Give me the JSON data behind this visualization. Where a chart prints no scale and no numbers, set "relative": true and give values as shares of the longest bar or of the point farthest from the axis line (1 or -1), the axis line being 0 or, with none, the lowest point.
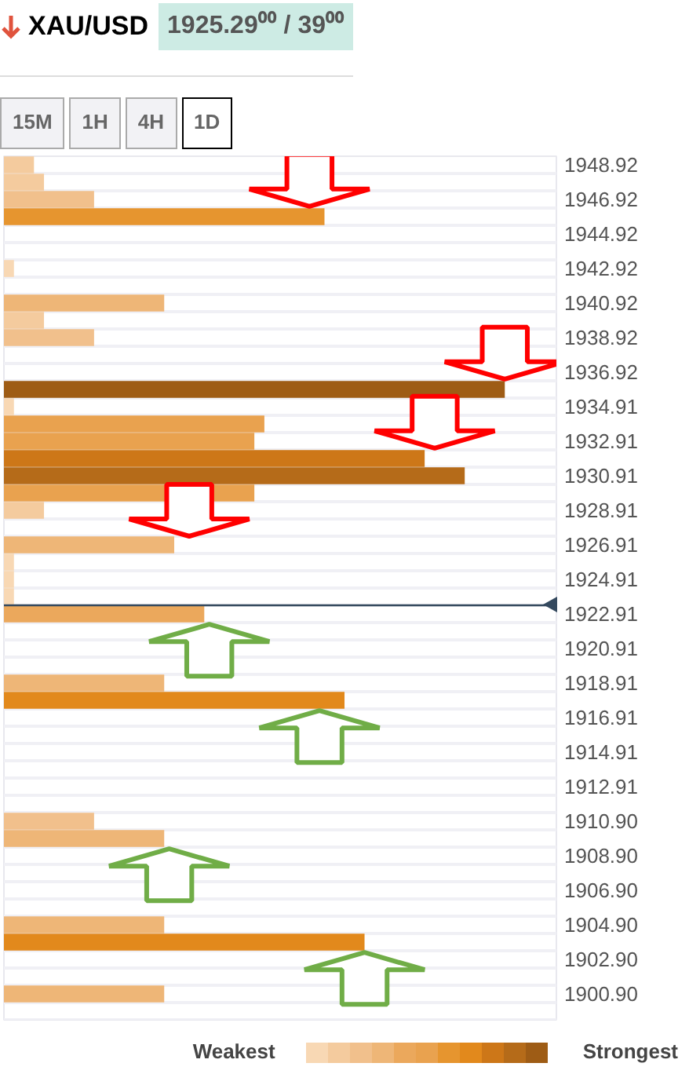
{
  "chart_data": {
    "type": "bar",
    "orientation": "horizontal",
    "relative": true,
    "title": "XAU/USD",
    "subtitle": "1925.29⁰⁰ / 39⁰⁰",
    "annotations": [
      "15M",
      "1H",
      "4H",
      "1D",
      "Weakest",
      "Strongest"
    ],
    "categories": [
      "1948.92",
      null,
      "1946.92",
      null,
      "1944.92",
      null,
      "1942.92",
      null,
      "1940.92",
      null,
      "1938.92",
      null,
      "1936.92",
      null,
      "1934.91",
      null,
      "1932.91",
      null,
      "1930.91",
      null,
      "1928.91",
      null,
      "1926.91",
      null,
      "1924.91",
      null,
      "1922.91",
      null,
      "1920.91",
      null,
      "1918.91",
      null,
      "1916.91",
      null,
      "1914.91",
      null,
      "1912.91",
      null,
      "1910.90",
      null,
      "1908.90",
      null,
      "1906.90",
      null,
      "1904.90",
      null,
      "1902.90",
      null,
      "1900.90",
      null
    ],
    "values": [
      0.06,
      0.08,
      0.18,
      0.64,
      null,
      null,
      0.02,
      null,
      0.32,
      0.08,
      0.18,
      null,
      null,
      1,
      0.02,
      0.52,
      0.5,
      0.84,
      0.92,
      0.5,
      0.08,
      null,
      0.34,
      0.02,
      0.02,
      0.02,
      0.4,
      null,
      null,
      null,
      0.32,
      0.68,
      null,
      null,
      null,
      null,
      null,
      null,
      0.18,
      0.32,
      null,
      null,
      null,
      null,
      0.32,
      0.72,
      null,
      null,
      0.32,
      null
    ],
    "colors": [
      "#f4cb9e",
      "#f4cb9e",
      "#f1c08c",
      "#e6952f",
      null,
      null,
      "#f8d8b4",
      null,
      "#eeb677",
      "#f4cb9e",
      "#f1c08c",
      null,
      null,
      "#9e5c15",
      "#f8d8b4",
      "#e9a24f",
      "#e9a24f",
      "#cd7718",
      "#b56b19",
      "#e9a24f",
      "#f4cb9e",
      null,
      "#eeb677",
      "#f8d8b4",
      "#f8d8b4",
      "#f8d8b4",
      "#eba85c",
      null,
      null,
      null,
      "#eeb677",
      "#e2891c",
      null,
      null,
      null,
      null,
      null,
      null,
      "#f1c08c",
      "#eeb677",
      null,
      null,
      null,
      null,
      "#eeb677",
      "#e2891c",
      null,
      null,
      "#eeb677",
      null
    ],
    "ref_lines": [
      {
        "axis": "y",
        "value": "1922.91",
        "color": "#34495e"
      }
    ]
  }
}
